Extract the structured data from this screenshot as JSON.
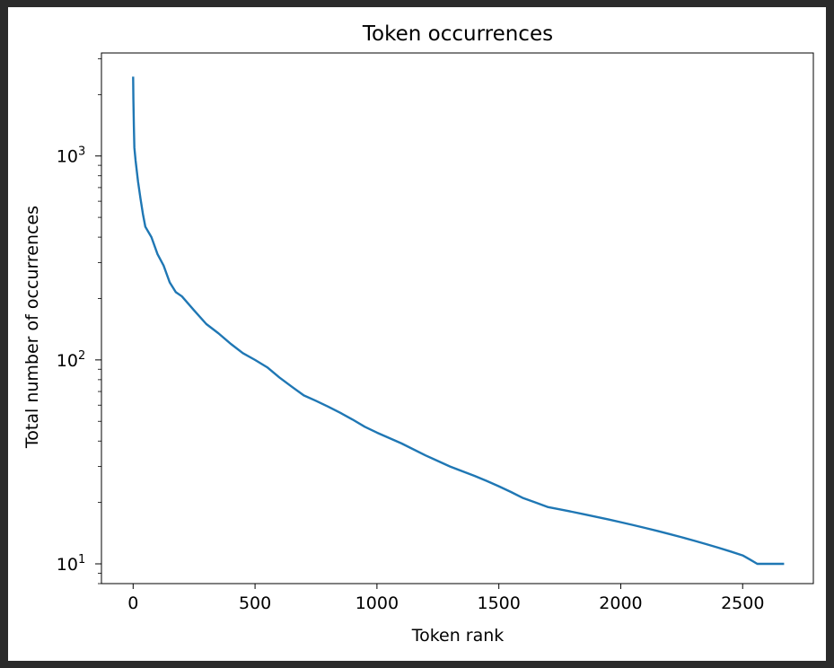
{
  "chart_data": {
    "type": "line",
    "title": "Token occurrences",
    "xlabel": "Token rank",
    "ylabel": "Total number of occurrences",
    "xlim": [
      -130,
      2790
    ],
    "ylim": [
      8,
      3200
    ],
    "yscale": "log",
    "grid": false,
    "legend": "none",
    "line_color": "#1f77b4",
    "x_ticks": [
      0,
      500,
      1000,
      1500,
      2000,
      2500
    ],
    "x_tick_labels": [
      "0",
      "500",
      "1000",
      "1500",
      "2000",
      "2500"
    ],
    "y_ticks": [
      10,
      100,
      1000
    ],
    "y_tick_labels": [
      {
        "base": "10",
        "exp": "1"
      },
      {
        "base": "10",
        "exp": "2"
      },
      {
        "base": "10",
        "exp": "3"
      }
    ],
    "series": [
      {
        "x": [
          0,
          1,
          3,
          5,
          10,
          20,
          30,
          40,
          50,
          75,
          100,
          125,
          150,
          175,
          200,
          250,
          300,
          350,
          400,
          450,
          500,
          550,
          600,
          650,
          700,
          750,
          800,
          850,
          900,
          950,
          1000,
          1100,
          1200,
          1300,
          1400,
          1450,
          1500,
          1550,
          1600,
          1650,
          1700,
          1750,
          1800,
          1850,
          1900,
          1950,
          2000,
          2050,
          2100,
          2150,
          2200,
          2250,
          2300,
          2350,
          2400,
          2450,
          2500,
          2530,
          2560,
          2600,
          2650,
          2670
        ],
        "y": [
          2450,
          1900,
          1400,
          1100,
          950,
          750,
          620,
          520,
          450,
          400,
          330,
          290,
          240,
          215,
          205,
          175,
          150,
          135,
          120,
          108,
          100,
          92,
          82,
          74,
          67,
          63,
          59,
          55,
          51,
          47,
          44,
          39,
          34,
          30,
          27,
          25.5,
          24,
          22.5,
          21,
          20,
          19,
          18.5,
          18,
          17.5,
          17,
          16.5,
          16,
          15.5,
          15,
          14.5,
          14,
          13.5,
          13,
          12.5,
          12,
          11.5,
          11,
          10.5,
          10,
          10,
          10,
          10
        ]
      }
    ]
  }
}
